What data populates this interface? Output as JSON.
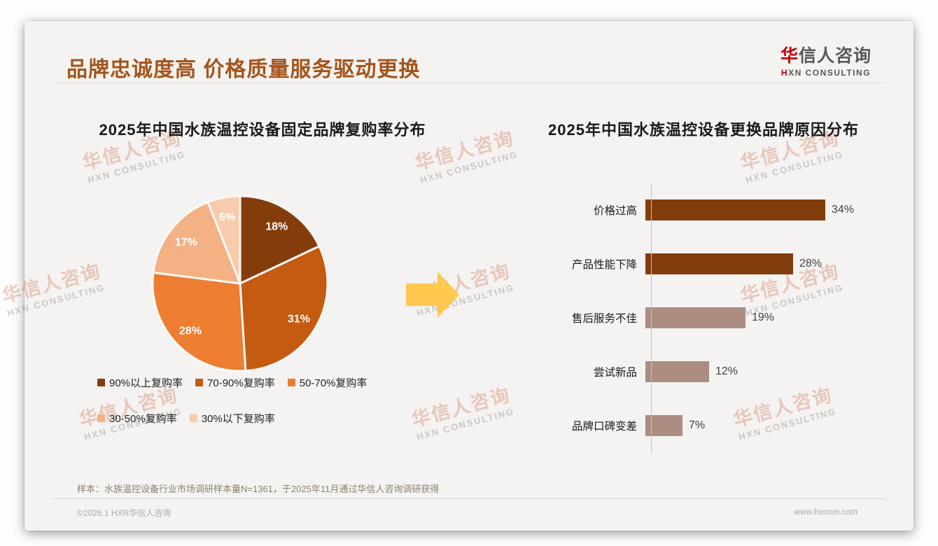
{
  "page": {
    "title": "品牌忠诚度高 价格质量服务驱动更换",
    "logo": {
      "cn_first": "华",
      "cn_rest": "信人咨询",
      "en_first": "H",
      "en_rest": "XN CONSULTING"
    },
    "watermark": {
      "line1": "华信人咨询",
      "line2": "HXN CONSULTING"
    },
    "footnote": "样本：水族温控设备行业市场调研样本量N=1361，于2025年11月通过华信人咨询调研获得",
    "copyright": "©2026.1 HXR华信人咨询",
    "website": "www.hxrcon.com"
  },
  "colors": {
    "title_brown": "#a4551c",
    "logo_red": "#c00000",
    "card_bg": "#f4f3f1",
    "arrow_yellow": "#ffc84e",
    "axis_gray": "#c3c3c3",
    "bar_dark_brown": "#833c0b",
    "bar_taupe": "#ab8d82"
  },
  "chart_data": [
    {
      "type": "pie",
      "title": "2025年中国水族温控设备固定品牌复购率分布",
      "labels": [
        "90%以上复购率",
        "70-90%复购率",
        "50-70%复购率",
        "30-50%复购率",
        "30%以下复购率"
      ],
      "values": [
        18,
        31,
        28,
        17,
        6
      ],
      "data_labels": [
        "18%",
        "31%",
        "28%",
        "17%",
        "6%"
      ],
      "colors": [
        "#843c0c",
        "#c55a11",
        "#ed7d31",
        "#f4b183",
        "#f8cbad"
      ],
      "start_angle_deg": 0,
      "direction": "clockwise",
      "legend_position": "bottom",
      "legend_rows": [
        [
          0,
          1,
          2
        ],
        [
          3,
          4
        ]
      ]
    },
    {
      "type": "bar",
      "orientation": "horizontal",
      "title": "2025年中国水族温控设备更换品牌原因分布",
      "categories": [
        "价格过高",
        "产品性能下降",
        "售后服务不佳",
        "尝试新品",
        "品牌口碑变差"
      ],
      "values": [
        34,
        28,
        19,
        12,
        7
      ],
      "value_labels": [
        "34%",
        "28%",
        "19%",
        "12%",
        "7%"
      ],
      "bar_colors": [
        "#833c0b",
        "#833c0b",
        "#ab8d82",
        "#ab8d82",
        "#ab8d82"
      ],
      "xlim": [
        0,
        40
      ],
      "grid": false
    }
  ]
}
